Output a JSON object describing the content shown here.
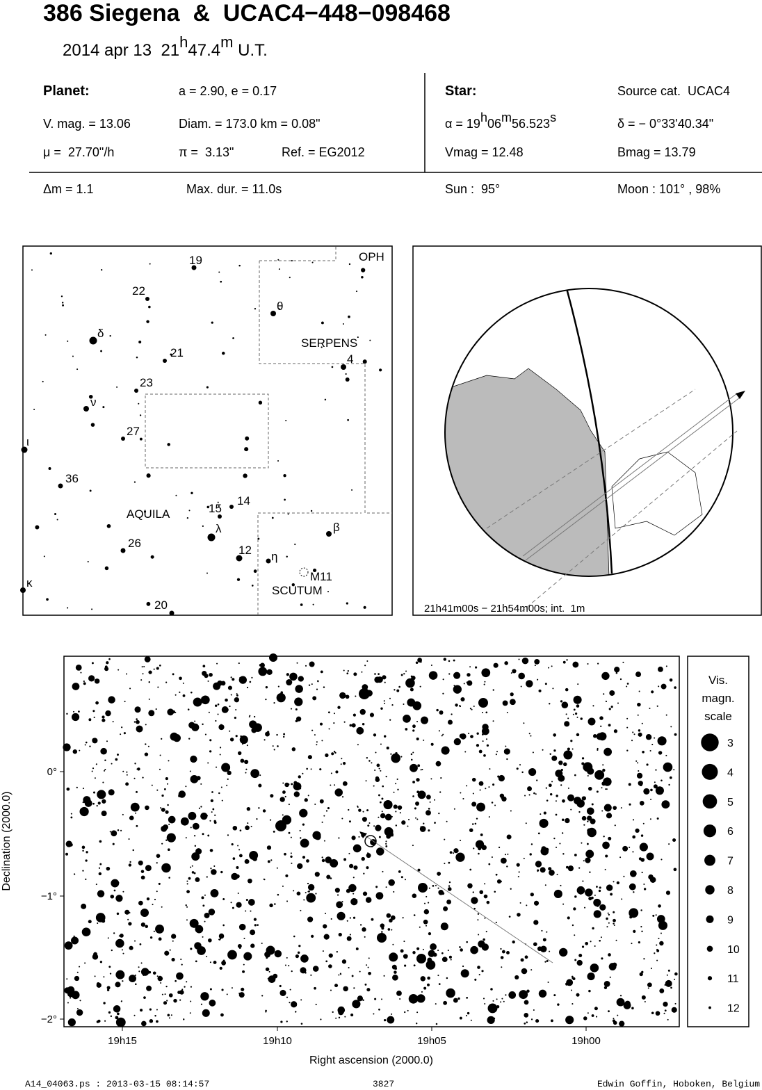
{
  "header": {
    "title": "386 Siegena  &  UCAC4−448−098468",
    "date": "2014 apr 13  21",
    "date_h": "h",
    "date_min": "47.4",
    "date_m": "m",
    "date_ut": " U.T."
  },
  "planet": {
    "label": "Planet:",
    "orbit": "a = 2.90, e = 0.17",
    "vmag": "V. mag. = 13.06",
    "diam": "Diam. = 173.0 km = 0.08\"",
    "mu": "μ =  27.70\"/h",
    "pi": "π =  3.13\"",
    "ref": "Ref. = EG2012"
  },
  "star": {
    "label": "Star:",
    "source": "Source cat.  UCAC4",
    "ra": [
      "α = 19",
      "h",
      "06",
      "m",
      "56.523",
      "s"
    ],
    "dec": "δ = − 0°33'40.34\"",
    "vmag": "Vmag = 12.48",
    "bmag": "Bmag = 13.79"
  },
  "event": {
    "dm": "Δm = 1.1",
    "dur": "Max. dur. = 11.0s",
    "sun": "Sun :  95°",
    "moon": "Moon : 101° , 98%"
  },
  "finder": {
    "labels": [
      "19",
      "22",
      "δ",
      "21",
      "23",
      "ν",
      "27",
      "ι",
      "36",
      "AQUILA",
      "15",
      "14",
      "λ",
      "26",
      "12",
      "η",
      "β",
      "M11",
      "SCUTUM",
      "κ",
      "20",
      "θ",
      "SERPENS",
      "4",
      "OPH"
    ]
  },
  "globe": {
    "caption": "21h41m00s − 21h54m00s; int.  1m"
  },
  "starfield": {
    "x_label": "Right ascension (2000.0)",
    "y_label": "Declination (2000.0)",
    "yticks": [
      "0°",
      "−1°",
      "−2°"
    ],
    "xticks": [
      "19h15",
      "19h10",
      "19h05",
      "19h00"
    ],
    "legend_title": [
      "Vis.",
      "magn.",
      "scale"
    ],
    "magnitudes": [
      3,
      4,
      5,
      6,
      7,
      8,
      9,
      10,
      11,
      12
    ]
  },
  "footer": {
    "file": "A14_04063.ps : 2013-03-15 08:14:57",
    "number": "3827",
    "author": "Edwin Goffin, Hoboken, Belgium"
  }
}
